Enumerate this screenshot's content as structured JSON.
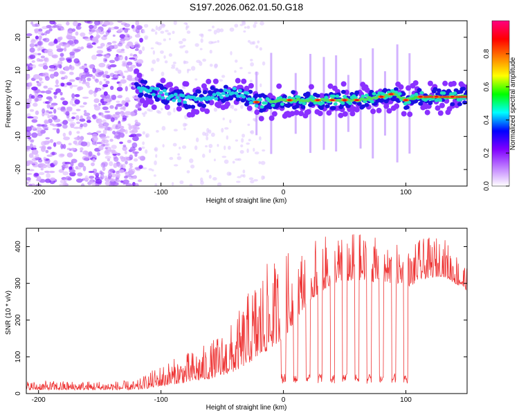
{
  "figure": {
    "title": "S197.2026.062.01.50.G18"
  },
  "chart_data": [
    {
      "type": "heatmap",
      "name": "spectrogram",
      "xlabel": "Height of straight line (km)",
      "ylabel": "Frequency (Hz)",
      "xlim": [
        -210,
        150
      ],
      "ylim": [
        -25,
        25
      ],
      "xticks": [
        -200,
        -100,
        0,
        100
      ],
      "yticks": [
        -20,
        -10,
        0,
        10,
        20
      ],
      "ridge": {
        "description_points_x": [
          -120,
          -100,
          -80,
          -60,
          -40,
          -20,
          0,
          20,
          40,
          60,
          80,
          90,
          100,
          110,
          150
        ],
        "description_points_freq": [
          5,
          3,
          1,
          2,
          4,
          0,
          1,
          1,
          1,
          1,
          2,
          3,
          1,
          2,
          2
        ]
      },
      "spikes_x": [
        -22,
        -10,
        10,
        22,
        33,
        43,
        53,
        63,
        73,
        83,
        93,
        103
      ],
      "colorbar": {
        "label": "Normalized spectral amplitude",
        "ticks": [
          0.0,
          0.2,
          0.4,
          0.6,
          0.8
        ],
        "range": [
          0.0,
          1.0
        ],
        "colors": [
          "#ffffff",
          "#c080ff",
          "#8000ff",
          "#0000ff",
          "#00ffff",
          "#00ff00",
          "#ffff00",
          "#ff8000",
          "#ff0000",
          "#ff0080"
        ]
      }
    },
    {
      "type": "line",
      "name": "snr",
      "xlabel": "Height of straight line (km)",
      "ylabel": "SNR (10 * v/v)",
      "xlim": [
        -210,
        150
      ],
      "ylim": [
        0,
        450
      ],
      "xticks": [
        -200,
        -100,
        0,
        100
      ],
      "yticks": [
        0,
        100,
        200,
        300,
        400
      ],
      "color": "#ee3333",
      "envelope_x": [
        -210,
        -120,
        -100,
        -60,
        -40,
        -20,
        0,
        20,
        40,
        60,
        80,
        100,
        104,
        110,
        130,
        150
      ],
      "envelope_lo": [
        10,
        10,
        20,
        40,
        60,
        100,
        150,
        250,
        300,
        310,
        300,
        300,
        290,
        310,
        320,
        280
      ],
      "envelope_hi": [
        35,
        35,
        80,
        140,
        200,
        340,
        380,
        420,
        430,
        440,
        420,
        400,
        390,
        420,
        430,
        350
      ],
      "dropouts_x": [
        0,
        10,
        20,
        30,
        40,
        50,
        60,
        70,
        80,
        90,
        100
      ],
      "dropout_level": 45
    }
  ]
}
